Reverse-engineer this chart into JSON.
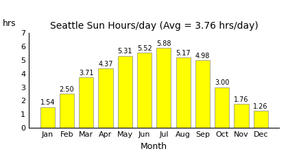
{
  "title": "Seattle Sun Hours/day (Avg = 3.76 hrs/day)",
  "xlabel": "Month",
  "ylabel": "hrs",
  "categories": [
    "Jan",
    "Feb",
    "Mar",
    "Apr",
    "May",
    "Jun",
    "Jul",
    "Aug",
    "Sep",
    "Oct",
    "Nov",
    "Dec"
  ],
  "values": [
    1.54,
    2.5,
    3.71,
    4.37,
    5.31,
    5.52,
    5.88,
    5.17,
    4.98,
    3.0,
    1.76,
    1.26
  ],
  "bar_color": "#FFFF00",
  "bar_edgecolor": "#888888",
  "ylim": [
    0,
    7
  ],
  "yticks": [
    0,
    1,
    2,
    3,
    4,
    5,
    6,
    7
  ],
  "background_color": "#ffffff",
  "title_fontsize": 10,
  "label_fontsize": 9,
  "tick_fontsize": 8,
  "value_fontsize": 7
}
